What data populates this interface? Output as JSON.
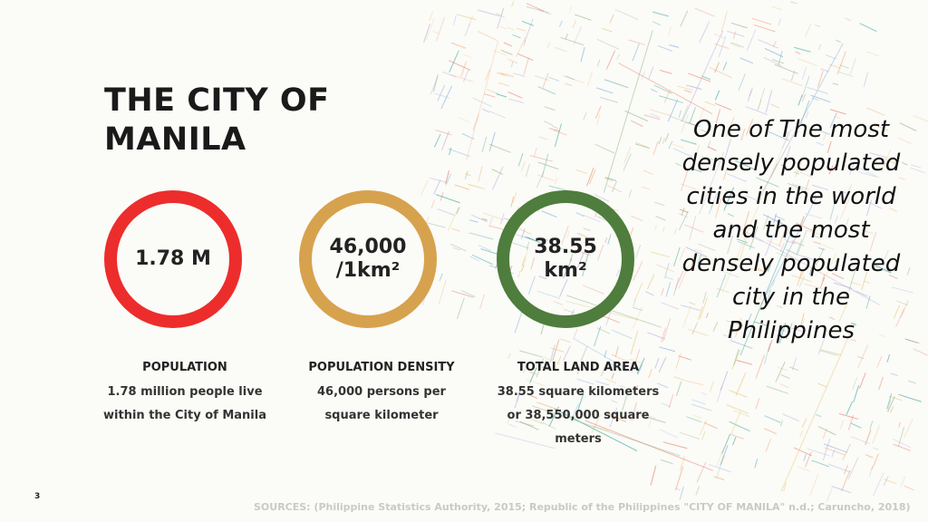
{
  "title": "THE CITY OF MANILA",
  "quote": "One of The most densely populated cities in the world and the most densely populated city in the Philippines",
  "stats": [
    {
      "value": "1.78 M",
      "label": "POPULATION",
      "description": "1.78 million people live within the City of Manila",
      "ring_color": "#ec2d2c"
    },
    {
      "value": "46,000 /1km²",
      "label": "POPULATION DENSITY",
      "description": "46,000 persons per square kilometer",
      "ring_color": "#d7a24e"
    },
    {
      "value": "38.55 km²",
      "label": "TOTAL LAND AREA",
      "description": "38.55 square kilometers or 38,550,000 square meters",
      "ring_color": "#4e7d3d"
    }
  ],
  "slide_number": "3",
  "sources": "SOURCES: (Philippine Statistics Authority, 2015; Republic of the Philippines \"CITY OF MANILA\" n.d.; Caruncho, 2018)",
  "colors": {
    "background": "#fbfbf8",
    "street_map": [
      "#e9c46a",
      "#f4a261",
      "#2a9d8f",
      "#8ab17d",
      "#7aa6d8",
      "#e76f51",
      "#b5a3d6"
    ]
  },
  "background_image": "street-map-of-manila"
}
